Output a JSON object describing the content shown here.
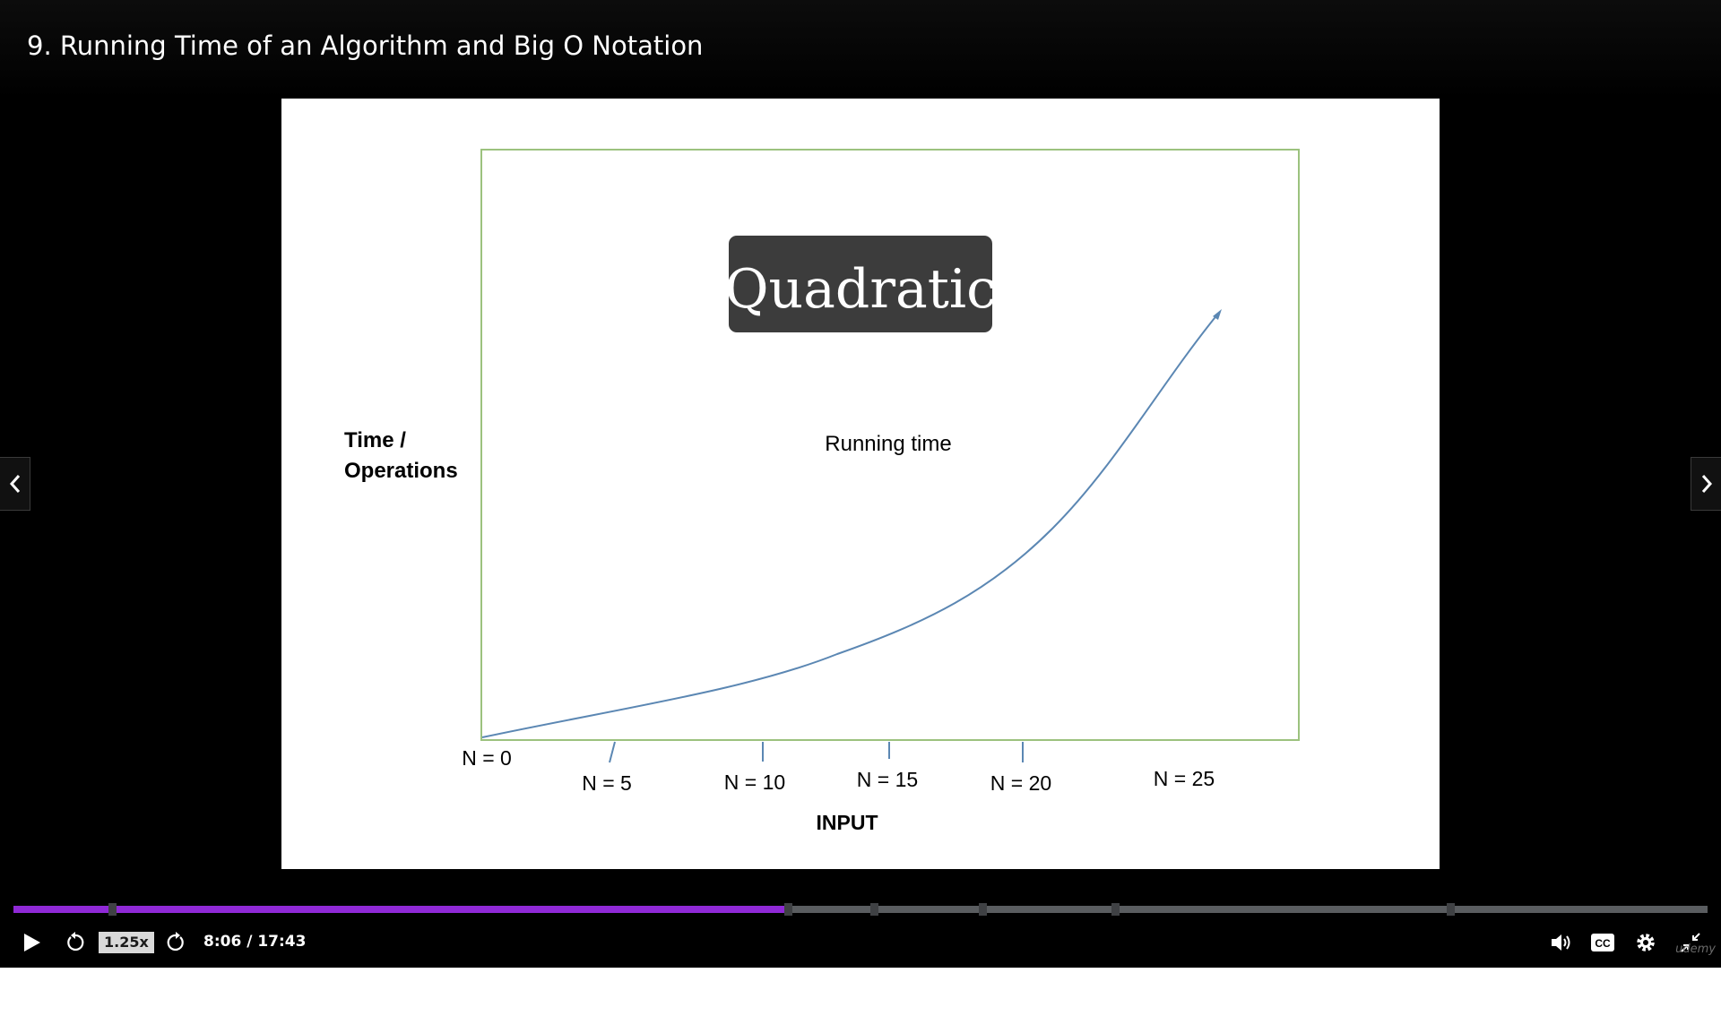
{
  "player": {
    "lecture_title": "9. Running Time of an Algorithm and Big O Notation",
    "accent_color": "#8f29d6",
    "progress": {
      "elapsed_seconds": 486,
      "total_seconds": 1063,
      "fraction": 0.457
    },
    "chapter_markers": [
      0.058,
      0.457,
      0.508,
      0.572,
      0.65,
      0.848
    ]
  },
  "controls": {
    "play_icon": "play-icon",
    "rewind_icon": "rewind-icon",
    "speed_label": "1.25x",
    "forward_icon": "forward-icon",
    "time_display": "8:06 / 17:43",
    "volume_icon": "volume-icon",
    "captions_icon": "cc-icon",
    "settings_icon": "gear-icon",
    "fullscreen_icon": "exit-fullscreen-icon"
  },
  "navigation": {
    "prev_icon": "chevron-left-icon",
    "next_icon": "chevron-right-icon"
  },
  "brand": {
    "watermark": "udemy"
  },
  "slide": {
    "badge_text": "Quadratic",
    "curve_label": "Running time",
    "y_axis_label_line1": "Time /",
    "y_axis_label_line2": "Operations",
    "x_axis_label": "INPUT",
    "tick_labels": [
      "N = 0",
      "N = 5",
      "N = 10",
      "N = 15",
      "N = 20",
      "N = 25"
    ],
    "frame_color": "#9cc27e",
    "curve_color": "#5b87b3"
  }
}
